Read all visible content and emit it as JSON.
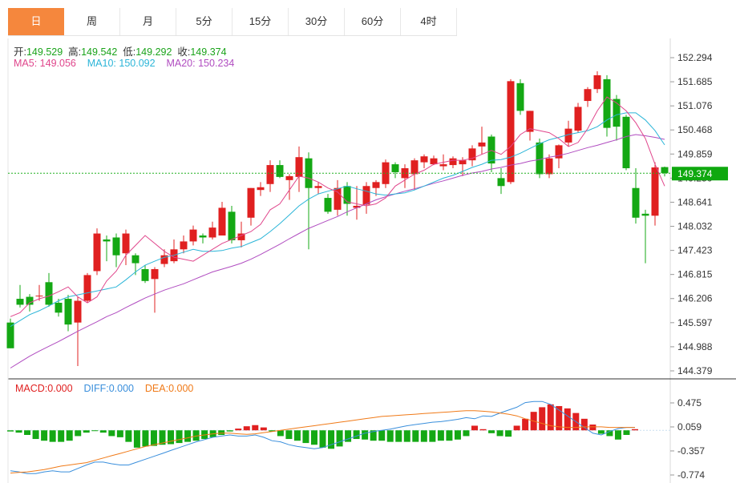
{
  "tabs": [
    "日",
    "周",
    "月",
    "5分",
    "15分",
    "30分",
    "60分",
    "4时"
  ],
  "active_tab": 0,
  "ohlc": {
    "open_label": "开:",
    "open": "149.529",
    "high_label": "高:",
    "high": "149.542",
    "low_label": "低:",
    "low": "149.292",
    "close_label": "收:",
    "close": "149.374"
  },
  "ma": {
    "ma5_label": "MA5:",
    "ma5": "149.056",
    "ma10_label": "MA10:",
    "ma10": "150.092",
    "ma20_label": "MA20:",
    "ma20": "150.234"
  },
  "macd": {
    "macd_label": "MACD:",
    "macd": "0.000",
    "diff_label": "DIFF:",
    "diff": "0.000",
    "dea_label": "DEA:",
    "dea": "0.000"
  },
  "current_price_tag": "149.374",
  "colors": {
    "up": "#e02020",
    "down": "#14a814",
    "ma5": "#e0468c",
    "ma10": "#2bb5d8",
    "ma20": "#b04cc0",
    "diff": "#3a8fdc",
    "dea": "#f07a18",
    "tab_active": "#f5873d",
    "price_line": "#20b020"
  },
  "chart_data": [
    {
      "type": "candlestick",
      "y_ticks": [
        152.294,
        151.685,
        151.076,
        150.468,
        149.859,
        149.25,
        148.641,
        148.032,
        147.423,
        146.815,
        146.206,
        145.597,
        144.988,
        144.379
      ],
      "ylim": [
        144.379,
        152.294
      ],
      "current_price": 149.374,
      "candles": [
        [
          145.6,
          144.95,
          145.7,
          144.95
        ],
        [
          146.2,
          146.05,
          146.55,
          145.98
        ],
        [
          146.25,
          146.05,
          146.32,
          145.88
        ],
        [
          146.28,
          146.28,
          146.55,
          146.15
        ],
        [
          146.62,
          146.05,
          146.85,
          146.0
        ],
        [
          146.1,
          145.85,
          146.2,
          145.75
        ],
        [
          146.2,
          145.55,
          146.3,
          145.38
        ],
        [
          145.6,
          146.15,
          146.25,
          144.5
        ],
        [
          146.15,
          146.8,
          146.85,
          146.1
        ],
        [
          146.9,
          147.85,
          147.98,
          146.8
        ],
        [
          147.7,
          147.65,
          147.8,
          147.15
        ],
        [
          147.75,
          147.3,
          147.85,
          147.0
        ],
        [
          147.35,
          147.85,
          147.95,
          147.05
        ],
        [
          147.3,
          147.1,
          147.35,
          146.8
        ],
        [
          146.95,
          146.65,
          147.05,
          146.6
        ],
        [
          146.7,
          146.95,
          147.0,
          145.85
        ],
        [
          147.08,
          147.3,
          147.45,
          147.0
        ],
        [
          147.15,
          147.45,
          147.7,
          147.1
        ],
        [
          147.45,
          147.65,
          147.8,
          147.35
        ],
        [
          147.65,
          147.95,
          148.05,
          147.55
        ],
        [
          147.8,
          147.75,
          147.85,
          147.6
        ],
        [
          147.75,
          148.0,
          148.15,
          147.7
        ],
        [
          147.8,
          148.5,
          148.65,
          147.8
        ],
        [
          148.4,
          147.68,
          148.55,
          147.6
        ],
        [
          147.68,
          147.85,
          148.15,
          147.5
        ],
        [
          148.25,
          149.0,
          149.0,
          148.05
        ],
        [
          148.95,
          149.02,
          149.15,
          148.8
        ],
        [
          149.1,
          149.58,
          149.7,
          148.9
        ],
        [
          149.58,
          149.28,
          149.7,
          149.25
        ],
        [
          149.2,
          149.3,
          149.35,
          148.7
        ],
        [
          149.28,
          149.78,
          150.05,
          148.9
        ],
        [
          149.75,
          149.0,
          149.9,
          147.45
        ],
        [
          149.0,
          149.05,
          149.15,
          148.85
        ],
        [
          148.75,
          148.4,
          148.85,
          148.35
        ],
        [
          148.45,
          149.0,
          149.2,
          148.3
        ],
        [
          149.05,
          148.6,
          149.15,
          148.3
        ],
        [
          148.5,
          148.55,
          149.05,
          148.2
        ],
        [
          148.58,
          149.05,
          149.15,
          148.35
        ],
        [
          149.0,
          149.15,
          149.2,
          148.8
        ],
        [
          149.1,
          149.65,
          149.72,
          149.0
        ],
        [
          149.6,
          149.4,
          149.65,
          149.25
        ],
        [
          149.25,
          149.5,
          149.6,
          149.0
        ],
        [
          149.35,
          149.7,
          149.75,
          148.95
        ],
        [
          149.65,
          149.8,
          149.85,
          149.5
        ],
        [
          149.6,
          149.75,
          149.82,
          149.58
        ],
        [
          149.55,
          149.6,
          149.85,
          149.45
        ],
        [
          149.58,
          149.75,
          149.8,
          149.5
        ],
        [
          149.6,
          149.7,
          149.78,
          149.3
        ],
        [
          149.7,
          150.0,
          150.08,
          149.55
        ],
        [
          150.05,
          150.15,
          150.55,
          149.85
        ],
        [
          150.3,
          149.62,
          150.35,
          149.4
        ],
        [
          149.25,
          149.05,
          149.5,
          148.85
        ],
        [
          149.15,
          151.7,
          151.75,
          149.1
        ],
        [
          151.65,
          150.95,
          151.75,
          150.85
        ],
        [
          150.42,
          150.95,
          150.95,
          150.2
        ],
        [
          150.15,
          149.35,
          150.25,
          149.25
        ],
        [
          149.35,
          149.75,
          149.85,
          149.25
        ],
        [
          149.75,
          150.08,
          150.1,
          149.5
        ],
        [
          150.15,
          150.5,
          150.7,
          150.05
        ],
        [
          150.45,
          151.05,
          151.15,
          150.4
        ],
        [
          151.2,
          151.5,
          151.55,
          151.05
        ],
        [
          151.5,
          151.85,
          151.95,
          151.4
        ],
        [
          151.75,
          150.52,
          151.85,
          150.3
        ],
        [
          151.25,
          150.55,
          151.35,
          150.2
        ],
        [
          150.8,
          149.5,
          150.85,
          149.45
        ],
        [
          149.0,
          148.25,
          149.5,
          148.1
        ],
        [
          148.35,
          148.3,
          148.45,
          147.1
        ],
        [
          148.3,
          149.52,
          149.65,
          148.05
        ],
        [
          149.529,
          149.374,
          149.542,
          149.292
        ]
      ],
      "ma5": [
        145.75,
        145.85,
        146.1,
        146.2,
        146.27,
        146.38,
        146.5,
        146.25,
        146.1,
        146.25,
        146.65,
        146.9,
        147.3,
        147.55,
        147.8,
        147.6,
        147.4,
        147.25,
        147.2,
        147.15,
        147.3,
        147.45,
        147.6,
        147.7,
        147.8,
        147.9,
        148.08,
        148.45,
        148.6,
        148.95,
        149.3,
        149.25,
        149.15,
        149.0,
        148.9,
        148.65,
        148.6,
        148.55,
        148.6,
        148.75,
        149.05,
        149.2,
        149.35,
        149.45,
        149.6,
        149.65,
        149.7,
        149.7,
        149.75,
        149.85,
        149.95,
        149.85,
        150.05,
        150.35,
        150.5,
        150.45,
        150.4,
        150.25,
        150.05,
        150.15,
        150.5,
        150.95,
        151.3,
        151.15,
        150.95,
        150.65,
        150.25,
        149.6,
        149.05
      ],
      "ma10": [
        145.5,
        145.65,
        145.8,
        145.9,
        146.02,
        146.15,
        146.25,
        146.3,
        146.35,
        146.4,
        146.45,
        146.5,
        146.68,
        146.88,
        147.05,
        147.15,
        147.25,
        147.3,
        147.38,
        147.45,
        147.4,
        147.4,
        147.42,
        147.48,
        147.52,
        147.62,
        147.72,
        147.9,
        148.1,
        148.32,
        148.55,
        148.72,
        148.85,
        148.92,
        148.98,
        149.05,
        148.98,
        148.92,
        148.85,
        148.82,
        148.85,
        148.88,
        148.95,
        149.05,
        149.15,
        149.25,
        149.32,
        149.42,
        149.52,
        149.6,
        149.7,
        149.72,
        149.78,
        149.88,
        150.0,
        150.12,
        150.22,
        150.28,
        150.35,
        150.4,
        150.45,
        150.55,
        150.72,
        150.85,
        150.9,
        150.9,
        150.72,
        150.45,
        150.09
      ],
      "ma20": [
        144.45,
        144.6,
        144.75,
        144.88,
        145.0,
        145.12,
        145.25,
        145.38,
        145.5,
        145.62,
        145.75,
        145.85,
        145.98,
        146.1,
        146.22,
        146.32,
        146.42,
        146.5,
        146.58,
        146.68,
        146.78,
        146.88,
        146.95,
        147.02,
        147.1,
        147.2,
        147.32,
        147.45,
        147.58,
        147.72,
        147.85,
        147.98,
        148.08,
        148.18,
        148.28,
        148.4,
        148.5,
        148.6,
        148.7,
        148.78,
        148.85,
        148.92,
        148.98,
        149.05,
        149.12,
        149.18,
        149.25,
        149.32,
        149.38,
        149.42,
        149.48,
        149.52,
        149.58,
        149.62,
        149.68,
        149.72,
        149.78,
        149.82,
        149.88,
        149.95,
        150.02,
        150.08,
        150.15,
        150.22,
        150.3,
        150.35,
        150.32,
        150.28,
        150.23
      ]
    },
    {
      "type": "bar+line",
      "name_labels": [
        "MACD",
        "DIFF",
        "DEA"
      ],
      "y_ticks": [
        0.475,
        0.059,
        -0.357,
        -0.774
      ],
      "ylim": [
        -0.774,
        0.6
      ],
      "macd_hist": [
        -0.02,
        -0.04,
        -0.08,
        -0.15,
        -0.18,
        -0.2,
        -0.2,
        -0.18,
        -0.1,
        -0.04,
        -0.01,
        -0.04,
        -0.1,
        -0.12,
        -0.2,
        -0.3,
        -0.28,
        -0.27,
        -0.25,
        -0.24,
        -0.22,
        -0.2,
        -0.18,
        -0.15,
        -0.12,
        -0.08,
        -0.02,
        0.03,
        0.07,
        0.09,
        0.05,
        -0.02,
        -0.1,
        -0.15,
        -0.18,
        -0.22,
        -0.25,
        -0.3,
        -0.32,
        -0.28,
        -0.2,
        -0.15,
        -0.16,
        -0.18,
        -0.18,
        -0.2,
        -0.2,
        -0.2,
        -0.2,
        -0.2,
        -0.2,
        -0.18,
        -0.18,
        -0.16,
        -0.1,
        0.08,
        0.02,
        -0.05,
        -0.1,
        -0.11,
        0.08,
        0.2,
        0.32,
        0.4,
        0.45,
        0.42,
        0.38,
        0.3,
        0.2,
        0.1,
        -0.06,
        -0.1,
        -0.16,
        -0.08,
        0.02
      ],
      "diff": [
        -0.7,
        -0.72,
        -0.75,
        -0.75,
        -0.72,
        -0.7,
        -0.72,
        -0.72,
        -0.66,
        -0.6,
        -0.55,
        -0.55,
        -0.58,
        -0.6,
        -0.6,
        -0.55,
        -0.5,
        -0.45,
        -0.4,
        -0.35,
        -0.3,
        -0.25,
        -0.2,
        -0.16,
        -0.12,
        -0.1,
        -0.08,
        -0.1,
        -0.1,
        -0.08,
        -0.12,
        -0.18,
        -0.2,
        -0.25,
        -0.28,
        -0.3,
        -0.32,
        -0.3,
        -0.25,
        -0.2,
        -0.15,
        -0.1,
        -0.05,
        -0.02,
        0.0,
        0.02,
        0.05,
        0.08,
        0.1,
        0.12,
        0.14,
        0.15,
        0.17,
        0.19,
        0.22,
        0.2,
        0.25,
        0.24,
        0.3,
        0.35,
        0.4,
        0.48,
        0.5,
        0.5,
        0.45,
        0.35,
        0.25,
        0.15,
        0.05,
        -0.05,
        -0.08,
        -0.02,
        0.03,
        0.05,
        0.05
      ],
      "dea": [
        -0.74,
        -0.73,
        -0.72,
        -0.7,
        -0.68,
        -0.65,
        -0.62,
        -0.6,
        -0.58,
        -0.56,
        -0.52,
        -0.48,
        -0.44,
        -0.4,
        -0.36,
        -0.32,
        -0.28,
        -0.25,
        -0.22,
        -0.19,
        -0.16,
        -0.13,
        -0.1,
        -0.08,
        -0.06,
        -0.05,
        -0.05,
        -0.06,
        -0.07,
        -0.06,
        -0.04,
        -0.02,
        0.0,
        0.02,
        0.04,
        0.06,
        0.08,
        0.1,
        0.12,
        0.14,
        0.16,
        0.18,
        0.2,
        0.22,
        0.24,
        0.25,
        0.26,
        0.27,
        0.28,
        0.29,
        0.3,
        0.31,
        0.32,
        0.33,
        0.34,
        0.34,
        0.33,
        0.32,
        0.3,
        0.28,
        0.25,
        0.2,
        0.16,
        0.12,
        0.08,
        0.06,
        0.05,
        0.05,
        0.06,
        0.06,
        0.06,
        0.05,
        0.05,
        0.05,
        0.05
      ]
    }
  ]
}
